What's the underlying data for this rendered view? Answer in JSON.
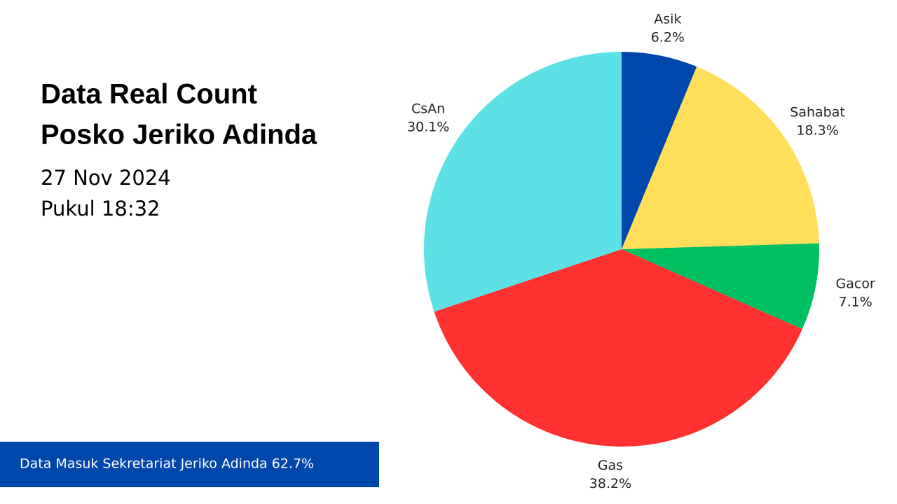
{
  "header": {
    "title_lines": [
      "Data Real Count",
      "Posko Jeriko Adinda"
    ],
    "date": "27 Nov 2024",
    "time": "Pukul 18:32"
  },
  "footer": {
    "text": "Data Masuk Sekretariat Jeriko Adinda 62.7%"
  },
  "chart_data": {
    "type": "pie",
    "categories": [
      "Asik",
      "Sahabat",
      "Gacor",
      "Gas",
      "CsAn"
    ],
    "values": [
      6.2,
      18.3,
      7.1,
      38.2,
      30.1
    ],
    "value_labels": [
      "6.2%",
      "18.3%",
      "7.1%",
      "38.2%",
      "30.1%"
    ],
    "colors": [
      "#0047ab",
      "#ffde59",
      "#00bf63",
      "#ff3131",
      "#5ce1e6"
    ]
  }
}
